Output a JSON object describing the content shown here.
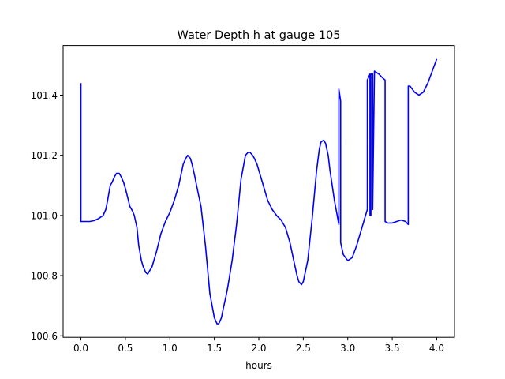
{
  "chart_data": {
    "type": "line",
    "title": "Water Depth h at gauge 105",
    "xlabel": "hours",
    "ylabel": "",
    "xlim": [
      -0.2,
      4.2
    ],
    "ylim": [
      100.595,
      101.565
    ],
    "xticks": [
      0.0,
      0.5,
      1.0,
      1.5,
      2.0,
      2.5,
      3.0,
      3.5,
      4.0
    ],
    "xtick_labels": [
      "0.0",
      "0.5",
      "1.0",
      "1.5",
      "2.0",
      "2.5",
      "3.0",
      "3.5",
      "4.0"
    ],
    "yticks": [
      100.6,
      100.8,
      101.0,
      101.2,
      101.4
    ],
    "ytick_labels": [
      "100.6",
      "100.8",
      "101.0",
      "101.2",
      "101.4"
    ],
    "grid": false,
    "legend": "none",
    "series": [
      {
        "color": "#0000ff",
        "x": [
          0.0,
          0.0,
          0.1,
          0.15,
          0.2,
          0.25,
          0.28,
          0.3,
          0.33,
          0.35,
          0.38,
          0.4,
          0.43,
          0.45,
          0.48,
          0.5,
          0.53,
          0.55,
          0.58,
          0.6,
          0.63,
          0.65,
          0.68,
          0.7,
          0.73,
          0.75,
          0.8,
          0.85,
          0.9,
          0.95,
          1.0,
          1.05,
          1.1,
          1.15,
          1.18,
          1.2,
          1.23,
          1.25,
          1.28,
          1.3,
          1.35,
          1.4,
          1.45,
          1.5,
          1.53,
          1.55,
          1.58,
          1.6,
          1.63,
          1.65,
          1.7,
          1.75,
          1.8,
          1.85,
          1.88,
          1.9,
          1.93,
          1.95,
          1.98,
          2.0,
          2.05,
          2.1,
          2.15,
          2.2,
          2.25,
          2.3,
          2.35,
          2.4,
          2.43,
          2.45,
          2.48,
          2.5,
          2.55,
          2.6,
          2.65,
          2.68,
          2.7,
          2.73,
          2.75,
          2.78,
          2.8,
          2.85,
          2.9,
          2.9,
          2.92,
          2.92,
          2.95,
          3.0,
          3.05,
          3.1,
          3.15,
          3.2,
          3.22,
          3.22,
          3.25,
          3.25,
          3.26,
          3.26,
          3.28,
          3.28,
          3.3,
          3.35,
          3.4,
          3.42,
          3.42,
          3.45,
          3.5,
          3.55,
          3.6,
          3.65,
          3.68,
          3.68,
          3.7,
          3.75,
          3.8,
          3.85,
          3.9,
          3.95,
          4.0
        ],
        "y": [
          101.44,
          100.98,
          100.98,
          100.983,
          100.99,
          101.0,
          101.02,
          101.05,
          101.1,
          101.11,
          101.13,
          101.14,
          101.14,
          101.13,
          101.11,
          101.09,
          101.055,
          101.03,
          101.015,
          101.0,
          100.96,
          100.9,
          100.85,
          100.83,
          100.81,
          100.805,
          100.83,
          100.88,
          100.94,
          100.98,
          101.01,
          101.05,
          101.1,
          101.17,
          101.19,
          101.2,
          101.19,
          101.17,
          101.13,
          101.1,
          101.03,
          100.9,
          100.74,
          100.66,
          100.64,
          100.64,
          100.66,
          100.69,
          100.73,
          100.76,
          100.85,
          100.97,
          101.12,
          101.2,
          101.21,
          101.21,
          101.2,
          101.19,
          101.17,
          101.15,
          101.1,
          101.05,
          101.02,
          101.0,
          100.985,
          100.96,
          100.91,
          100.84,
          100.8,
          100.78,
          100.77,
          100.78,
          100.85,
          100.99,
          101.15,
          101.22,
          101.245,
          101.25,
          101.24,
          101.2,
          101.15,
          101.05,
          100.97,
          101.42,
          101.38,
          100.91,
          100.87,
          100.85,
          100.86,
          100.9,
          100.95,
          101.0,
          101.02,
          101.45,
          101.47,
          101.0,
          101.0,
          101.47,
          101.47,
          101.02,
          101.48,
          101.47,
          101.455,
          101.45,
          100.98,
          100.975,
          100.975,
          100.98,
          100.985,
          100.98,
          100.97,
          101.43,
          101.43,
          101.41,
          101.4,
          101.41,
          101.44,
          101.48,
          101.52
        ]
      }
    ]
  }
}
